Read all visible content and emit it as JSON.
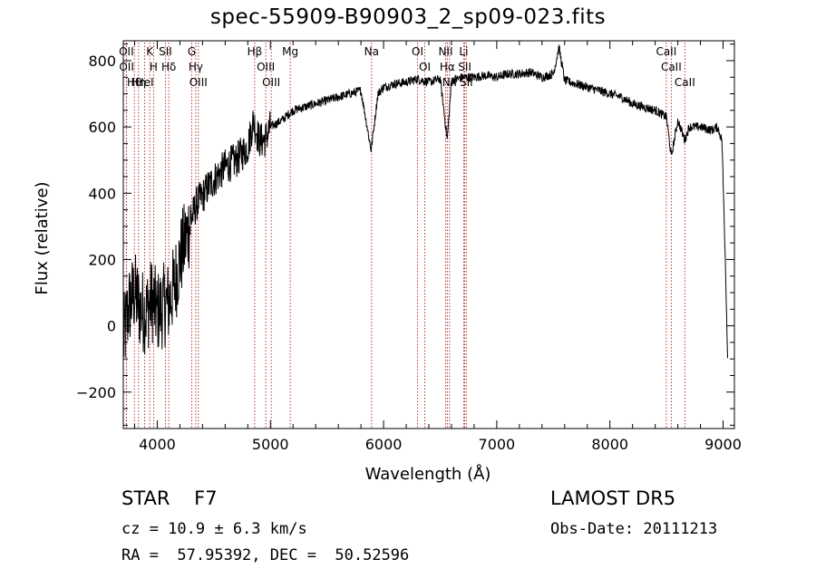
{
  "chart_data": {
    "type": "line",
    "title": "spec-55909-B90903_2_sp09-023.fits",
    "xlabel": "Wavelength (Å)",
    "ylabel": "Flux (relative)",
    "xlim": [
      3700,
      9100
    ],
    "ylim": [
      -310,
      860
    ],
    "xticks": [
      4000,
      5000,
      6000,
      7000,
      8000,
      9000
    ],
    "yticks": [
      -200,
      0,
      200,
      400,
      600,
      800
    ],
    "grid": false,
    "legend": "none",
    "line_color": "#000000",
    "marker_color": "#b22222",
    "series": [
      {
        "x": [
          3700,
          3750,
          3800,
          3850,
          3900,
          3950,
          4000,
          4050,
          4100,
          4150,
          4200,
          4250,
          4300,
          4350,
          4400,
          4450,
          4500,
          4600,
          4700,
          4800,
          4850,
          4900,
          4950,
          5000,
          5100,
          5200,
          5300,
          5400,
          5500,
          5600,
          5700,
          5800,
          5890,
          5950,
          6000,
          6100,
          6200,
          6300,
          6400,
          6500,
          6563,
          6600,
          6700,
          6800,
          6900,
          7000,
          7100,
          7200,
          7300,
          7400,
          7500,
          7550,
          7600,
          7700,
          7800,
          7900,
          8000,
          8100,
          8200,
          8300,
          8400,
          8500,
          8542,
          8600,
          8662,
          8700,
          8800,
          8900,
          8950,
          8990,
          9020,
          9040
        ],
        "y": [
          -50,
          60,
          100,
          50,
          40,
          80,
          40,
          60,
          70,
          120,
          200,
          260,
          320,
          370,
          390,
          420,
          440,
          480,
          500,
          540,
          620,
          560,
          560,
          600,
          620,
          650,
          660,
          670,
          680,
          690,
          700,
          710,
          530,
          700,
          720,
          730,
          735,
          745,
          735,
          745,
          560,
          740,
          750,
          750,
          755,
          750,
          760,
          760,
          765,
          750,
          760,
          840,
          740,
          730,
          720,
          710,
          700,
          690,
          670,
          660,
          650,
          630,
          510,
          620,
          560,
          600,
          600,
          590,
          600,
          560,
          200,
          -100
        ]
      }
    ],
    "line_markers": [
      {
        "label": "Hθ",
        "x": 3798
      },
      {
        "label": "OII",
        "x": 3727
      },
      {
        "label": "OII",
        "x": 3729
      },
      {
        "label": "Hη",
        "x": 3835
      },
      {
        "label": "HeI",
        "x": 3889
      },
      {
        "label": "K",
        "x": 3934
      },
      {
        "label": "H",
        "x": 3968
      },
      {
        "label": "SII",
        "x": 4072
      },
      {
        "label": "Hδ",
        "x": 4102
      },
      {
        "label": "OIII",
        "x": 4363
      },
      {
        "label": "Hγ",
        "x": 4340
      },
      {
        "label": "G",
        "x": 4305
      },
      {
        "label": "Hβ",
        "x": 4861
      },
      {
        "label": "OIII",
        "x": 4959
      },
      {
        "label": "OIII",
        "x": 5007
      },
      {
        "label": "Mg",
        "x": 5175
      },
      {
        "label": "Na",
        "x": 5894
      },
      {
        "label": "OI",
        "x": 6300
      },
      {
        "label": "OI",
        "x": 6364
      },
      {
        "label": "Hα",
        "x": 6563
      },
      {
        "label": "NII",
        "x": 6548
      },
      {
        "label": "NII",
        "x": 6583
      },
      {
        "label": "SII",
        "x": 6717
      },
      {
        "label": "Li",
        "x": 6708
      },
      {
        "label": "SII",
        "x": 6731
      },
      {
        "label": "CaII",
        "x": 8498
      },
      {
        "label": "CaII",
        "x": 8542
      },
      {
        "label": "CaII",
        "x": 8662
      }
    ]
  },
  "info": {
    "object_line": "STAR    F7",
    "cz_line": "cz = 10.9 ± 6.3 km/s",
    "radec_line": "RA =  57.95392, DEC =  50.52596",
    "survey": "LAMOST DR5",
    "obs_date": "Obs-Date: 20111213"
  }
}
